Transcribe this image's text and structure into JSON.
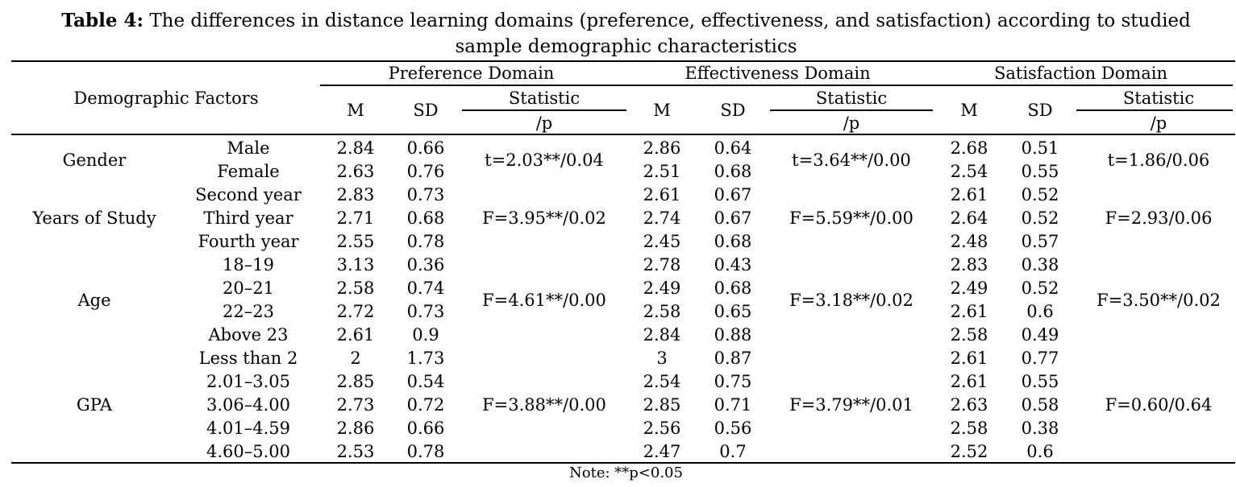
{
  "caption": {
    "label": "Table 4:",
    "text_line1": "The differences in distance learning domains (preference, effectiveness, and satisfaction) according to studied",
    "text_line2": "sample demographic characteristics"
  },
  "header": {
    "demographic_factors": "Demographic Factors",
    "domains": [
      "Preference Domain",
      "Effectiveness Domain",
      "Satisfaction Domain"
    ],
    "m": "M",
    "sd": "SD",
    "statistic": "Statistic",
    "p": "/p"
  },
  "groups": [
    {
      "factor": "Gender",
      "stats": [
        "t=2.03**/0.04",
        "t=3.64**/0.00",
        "t=1.86/0.06"
      ],
      "rows": [
        {
          "level": "Male",
          "values": [
            "2.84",
            "0.66",
            "2.86",
            "0.64",
            "2.68",
            "0.51"
          ]
        },
        {
          "level": "Female",
          "values": [
            "2.63",
            "0.76",
            "2.51",
            "0.68",
            "2.54",
            "0.55"
          ]
        }
      ]
    },
    {
      "factor": "Years of Study",
      "stats": [
        "F=3.95**/0.02",
        "F=5.59**/0.00",
        "F=2.93/0.06"
      ],
      "rows": [
        {
          "level": "Second year",
          "values": [
            "2.83",
            "0.73",
            "2.61",
            "0.67",
            "2.61",
            "0.52"
          ]
        },
        {
          "level": "Third year",
          "values": [
            "2.71",
            "0.68",
            "2.74",
            "0.67",
            "2.64",
            "0.52"
          ]
        },
        {
          "level": "Fourth year",
          "values": [
            "2.55",
            "0.78",
            "2.45",
            "0.68",
            "2.48",
            "0.57"
          ]
        }
      ]
    },
    {
      "factor": "Age",
      "stats": [
        "F=4.61**/0.00",
        "F=3.18**/0.02",
        "F=3.50**/0.02"
      ],
      "rows": [
        {
          "level": "18–19",
          "values": [
            "3.13",
            "0.36",
            "2.78",
            "0.43",
            "2.83",
            "0.38"
          ]
        },
        {
          "level": "20–21",
          "values": [
            "2.58",
            "0.74",
            "2.49",
            "0.68",
            "2.49",
            "0.52"
          ]
        },
        {
          "level": "22–23",
          "values": [
            "2.72",
            "0.73",
            "2.58",
            "0.65",
            "2.61",
            "0.6"
          ]
        },
        {
          "level": "Above 23",
          "values": [
            "2.61",
            "0.9",
            "2.84",
            "0.88",
            "2.58",
            "0.49"
          ]
        }
      ]
    },
    {
      "factor": "GPA",
      "stats": [
        "F=3.88**/0.00",
        "F=3.79**/0.01",
        "F=0.60/0.64"
      ],
      "rows": [
        {
          "level": "Less than 2",
          "values": [
            "2",
            "1.73",
            "3",
            "0.87",
            "2.61",
            "0.77"
          ]
        },
        {
          "level": "2.01–3.05",
          "values": [
            "2.85",
            "0.54",
            "2.54",
            "0.75",
            "2.61",
            "0.55"
          ]
        },
        {
          "level": "3.06–4.00",
          "values": [
            "2.73",
            "0.72",
            "2.85",
            "0.71",
            "2.63",
            "0.58"
          ]
        },
        {
          "level": "4.01–4.59",
          "values": [
            "2.86",
            "0.66",
            "2.56",
            "0.56",
            "2.58",
            "0.38"
          ]
        },
        {
          "level": "4.60–5.00",
          "values": [
            "2.53",
            "0.78",
            "2.47",
            "0.7",
            "2.52",
            "0.6"
          ]
        }
      ]
    }
  ],
  "note": "Note: **p<0.05"
}
